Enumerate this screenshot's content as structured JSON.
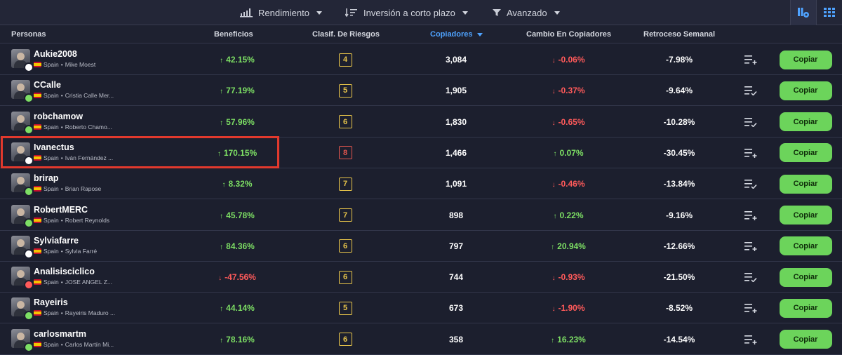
{
  "toolbar": {
    "filters": [
      {
        "label": "Rendimiento",
        "icon": "bar-chart-icon"
      },
      {
        "label": "Inversión a corto plazo",
        "icon": "sort-icon"
      },
      {
        "label": "Avanzado",
        "icon": "filter-icon"
      }
    ],
    "views": [
      {
        "icon": "settings-view-icon",
        "active": true
      },
      {
        "icon": "grid-view-icon",
        "active": false
      }
    ]
  },
  "table": {
    "columns": {
      "people": "Personas",
      "profit": "Beneficios",
      "risk": "Clasif. De Riesgos",
      "copiers": "Copiadores",
      "copiers_change": "Cambio En Copiadores",
      "drawdown": "Retroceso Semanal"
    },
    "copy_label": "Copiar",
    "rows": [
      {
        "username": "Aukie2008",
        "country": "Spain",
        "full_name": "Mike Moest",
        "profit": "42.15%",
        "profit_dir": "up",
        "risk": "4",
        "copiers": "3,084",
        "change": "-0.06%",
        "change_dir": "down",
        "drawdown": "-7.98%",
        "list_icon": "add-list-icon",
        "badge": "star"
      },
      {
        "username": "CCalle",
        "country": "Spain",
        "full_name": "Cristia Calle Mer...",
        "profit": "77.19%",
        "profit_dir": "up",
        "risk": "5",
        "copiers": "1,905",
        "change": "-0.37%",
        "change_dir": "down",
        "drawdown": "-9.64%",
        "list_icon": "check-list-icon",
        "badge": "green"
      },
      {
        "username": "robchamow",
        "country": "Spain",
        "full_name": "Roberto Chamo...",
        "profit": "57.96%",
        "profit_dir": "up",
        "risk": "6",
        "copiers": "1,830",
        "change": "-0.65%",
        "change_dir": "down",
        "drawdown": "-10.28%",
        "list_icon": "check-list-icon",
        "badge": "green"
      },
      {
        "username": "Ivanectus",
        "country": "Spain",
        "full_name": "Iván Fernández ...",
        "profit": "170.15%",
        "profit_dir": "up",
        "risk": "8",
        "copiers": "1,466",
        "change": "0.07%",
        "change_dir": "up",
        "drawdown": "-30.45%",
        "list_icon": "add-list-icon",
        "badge": "star"
      },
      {
        "username": "brirap",
        "country": "Spain",
        "full_name": "Brian Rapose",
        "profit": "8.32%",
        "profit_dir": "up",
        "risk": "7",
        "copiers": "1,091",
        "change": "-0.46%",
        "change_dir": "down",
        "drawdown": "-13.84%",
        "list_icon": "check-list-icon",
        "badge": "green"
      },
      {
        "username": "RobertMERC",
        "country": "Spain",
        "full_name": "Robert Reynolds",
        "profit": "45.78%",
        "profit_dir": "up",
        "risk": "7",
        "copiers": "898",
        "change": "0.22%",
        "change_dir": "up",
        "drawdown": "-9.16%",
        "list_icon": "add-list-icon",
        "badge": "green"
      },
      {
        "username": "Sylviafarre",
        "country": "Spain",
        "full_name": "Sylvia Farré",
        "profit": "84.36%",
        "profit_dir": "up",
        "risk": "6",
        "copiers": "797",
        "change": "20.94%",
        "change_dir": "up",
        "drawdown": "-12.66%",
        "list_icon": "add-list-icon",
        "badge": "star"
      },
      {
        "username": "Analisisciclico",
        "country": "Spain",
        "full_name": "JOSE ANGEL Z...",
        "profit": "-47.56%",
        "profit_dir": "down",
        "risk": "6",
        "copiers": "744",
        "change": "-0.93%",
        "change_dir": "down",
        "drawdown": "-21.50%",
        "list_icon": "check-list-icon",
        "badge": "red"
      },
      {
        "username": "Rayeiris",
        "country": "Spain",
        "full_name": "Rayeiris Maduro ...",
        "profit": "44.14%",
        "profit_dir": "up",
        "risk": "5",
        "copiers": "673",
        "change": "-1.90%",
        "change_dir": "down",
        "drawdown": "-8.52%",
        "list_icon": "add-list-icon",
        "badge": "green"
      },
      {
        "username": "carlosmartm",
        "country": "Spain",
        "full_name": "Carlos Martín Mi...",
        "profit": "78.16%",
        "profit_dir": "up",
        "risk": "6",
        "copiers": "358",
        "change": "16.23%",
        "change_dir": "up",
        "drawdown": "-14.54%",
        "list_icon": "add-list-icon",
        "badge": "green"
      }
    ]
  },
  "colors": {
    "positive": "#7ddf64",
    "negative": "#ff5a5a",
    "accent": "#4fa3ff",
    "copy_button": "#6cd45b",
    "highlight": "#e2392d"
  }
}
